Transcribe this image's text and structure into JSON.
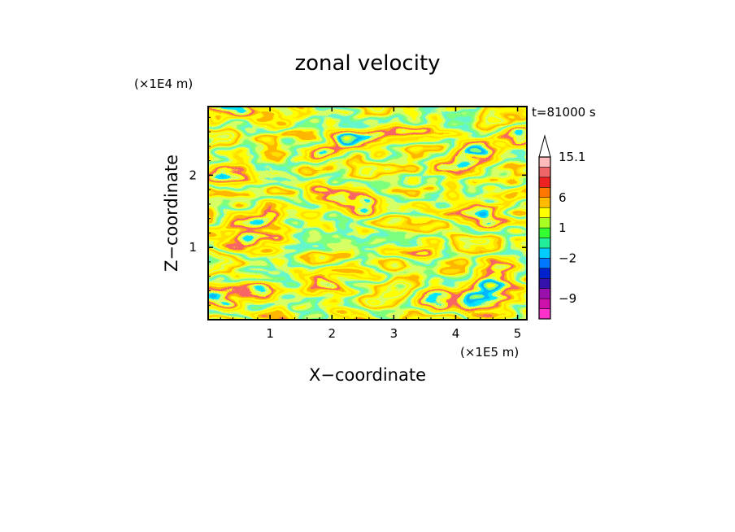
{
  "chart_data": {
    "type": "heatmap",
    "title": "zonal velocity",
    "xlabel": "X−coordinate",
    "ylabel": "Z−coordinate",
    "x_unit": "(×1E5 m)",
    "y_unit": "(×1E4 m)",
    "time_label": "t=81000 s",
    "xlim": [
      0,
      5.15
    ],
    "ylim": [
      0,
      2.95
    ],
    "x_ticks": [
      1,
      2,
      3,
      4,
      5
    ],
    "y_ticks": [
      1,
      2
    ],
    "colorbar": {
      "levels": [
        -13,
        -11,
        -9,
        -7,
        -5,
        -3,
        -2,
        -1,
        0,
        1,
        2,
        3,
        6,
        9,
        12,
        15.1
      ],
      "colors": [
        "#ff33cc",
        "#cc11aa",
        "#9911aa",
        "#3311aa",
        "#0022cc",
        "#0077ff",
        "#00ccff",
        "#22ee99",
        "#33ff33",
        "#aaff22",
        "#ffff00",
        "#ffbb00",
        "#ff7700",
        "#ee2222",
        "#ee6666",
        "#ffbbbb"
      ],
      "tick_labels": [
        "15.1",
        "6",
        "1",
        "−2",
        "−9"
      ],
      "tick_values": [
        15.1,
        6,
        1,
        -2,
        -9
      ],
      "extend": "max"
    }
  }
}
